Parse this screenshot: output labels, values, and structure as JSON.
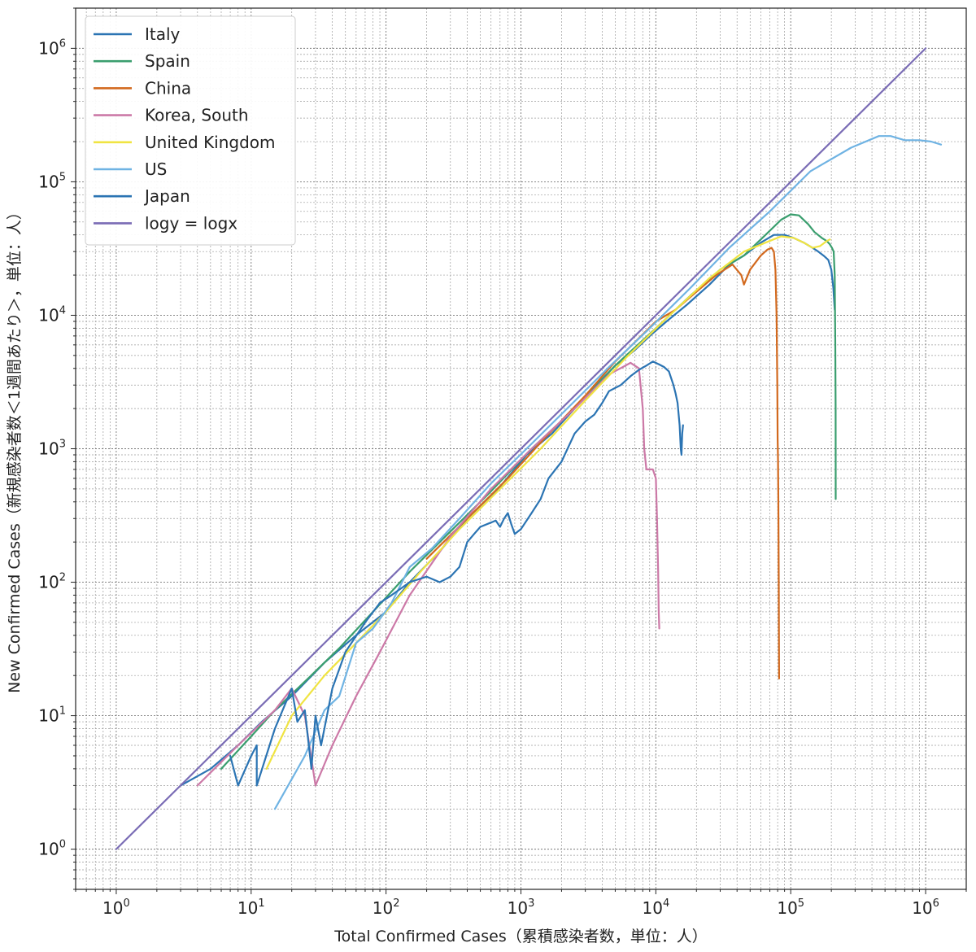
{
  "chart_data": {
    "type": "line",
    "xscale": "log",
    "yscale": "log",
    "xlim": [
      0.5,
      2000000
    ],
    "ylim": [
      0.5,
      2000000
    ],
    "xlabel": "Total Confirmed Cases（累積感染者数，単位：人）",
    "ylabel": "New Confirmed Cases（新規感染者数＜1週間あたり＞，単位：人）",
    "title": "",
    "grid": "major and minor, dotted",
    "legend_position": "top-left",
    "x_ticks": [
      {
        "value": 1,
        "base": "10",
        "exp": "0"
      },
      {
        "value": 10,
        "base": "10",
        "exp": "1"
      },
      {
        "value": 100,
        "base": "10",
        "exp": "2"
      },
      {
        "value": 1000,
        "base": "10",
        "exp": "3"
      },
      {
        "value": 10000,
        "base": "10",
        "exp": "4"
      },
      {
        "value": 100000,
        "base": "10",
        "exp": "5"
      },
      {
        "value": 1000000,
        "base": "10",
        "exp": "6"
      }
    ],
    "y_ticks": [
      {
        "value": 1,
        "base": "10",
        "exp": "0"
      },
      {
        "value": 10,
        "base": "10",
        "exp": "1"
      },
      {
        "value": 100,
        "base": "10",
        "exp": "2"
      },
      {
        "value": 1000,
        "base": "10",
        "exp": "3"
      },
      {
        "value": 10000,
        "base": "10",
        "exp": "4"
      },
      {
        "value": 100000,
        "base": "10",
        "exp": "5"
      },
      {
        "value": 1000000,
        "base": "10",
        "exp": "6"
      }
    ],
    "series": [
      {
        "name": "Italy",
        "color": "#2b74b3",
        "points": [
          [
            3,
            3
          ],
          [
            5,
            4
          ],
          [
            8,
            6
          ],
          [
            12,
            9
          ],
          [
            20,
            14
          ],
          [
            35,
            25
          ],
          [
            60,
            40
          ],
          [
            100,
            60
          ],
          [
            150,
            100
          ],
          [
            250,
            170
          ],
          [
            400,
            300
          ],
          [
            700,
            520
          ],
          [
            1100,
            900
          ],
          [
            1700,
            1300
          ],
          [
            2500,
            2000
          ],
          [
            3500,
            2900
          ],
          [
            5000,
            4200
          ],
          [
            7000,
            5500
          ],
          [
            9000,
            7000
          ],
          [
            12000,
            9000
          ],
          [
            17000,
            12000
          ],
          [
            25000,
            17000
          ],
          [
            35000,
            24000
          ],
          [
            45000,
            28000
          ],
          [
            60000,
            35000
          ],
          [
            75000,
            40000
          ],
          [
            90000,
            40000
          ],
          [
            105000,
            38000
          ],
          [
            125000,
            35000
          ],
          [
            145000,
            32000
          ],
          [
            160000,
            30000
          ],
          [
            175000,
            28000
          ],
          [
            190000,
            26000
          ],
          [
            200000,
            22000
          ],
          [
            207000,
            16000
          ],
          [
            212000,
            11000
          ]
        ]
      },
      {
        "name": "Spain",
        "color": "#3a9e6e",
        "points": [
          [
            6,
            4
          ],
          [
            10,
            7
          ],
          [
            15,
            11
          ],
          [
            25,
            18
          ],
          [
            45,
            32
          ],
          [
            80,
            60
          ],
          [
            150,
            120
          ],
          [
            300,
            240
          ],
          [
            600,
            480
          ],
          [
            1200,
            1000
          ],
          [
            2500,
            2000
          ],
          [
            5000,
            4200
          ],
          [
            10000,
            8000
          ],
          [
            18000,
            14000
          ],
          [
            30000,
            22000
          ],
          [
            45000,
            28000
          ],
          [
            65000,
            40000
          ],
          [
            85000,
            52000
          ],
          [
            100000,
            57000
          ],
          [
            115000,
            56000
          ],
          [
            135000,
            48000
          ],
          [
            150000,
            42000
          ],
          [
            170000,
            38000
          ],
          [
            185000,
            36000
          ],
          [
            195000,
            34000
          ],
          [
            202000,
            32000
          ],
          [
            208000,
            30000
          ],
          [
            212000,
            20000
          ],
          [
            214000,
            6000
          ],
          [
            215000,
            2000
          ],
          [
            215500,
            420
          ]
        ]
      },
      {
        "name": "China",
        "color": "#d2691e",
        "points": [
          [
            200,
            150
          ],
          [
            400,
            300
          ],
          [
            800,
            600
          ],
          [
            1500,
            1200
          ],
          [
            3000,
            2500
          ],
          [
            5000,
            4500
          ],
          [
            7000,
            6300
          ],
          [
            10000,
            9000
          ],
          [
            14000,
            11000
          ],
          [
            20000,
            15000
          ],
          [
            28000,
            20000
          ],
          [
            37000,
            24000
          ],
          [
            43000,
            20000
          ],
          [
            45000,
            17000
          ],
          [
            50000,
            22000
          ],
          [
            60000,
            28000
          ],
          [
            67000,
            31000
          ],
          [
            72000,
            32000
          ],
          [
            75000,
            30000
          ],
          [
            77000,
            22000
          ],
          [
            78500,
            10000
          ],
          [
            79500,
            3000
          ],
          [
            80000,
            1200
          ],
          [
            80500,
            800
          ],
          [
            81000,
            400
          ],
          [
            81300,
            170
          ],
          [
            81500,
            100
          ],
          [
            81800,
            40
          ],
          [
            82000,
            19
          ]
        ]
      },
      {
        "name": "Korea, South",
        "color": "#cc79a7",
        "points": [
          [
            4,
            3
          ],
          [
            8,
            6
          ],
          [
            15,
            11
          ],
          [
            20,
            16
          ],
          [
            25,
            10
          ],
          [
            30,
            3
          ],
          [
            40,
            6
          ],
          [
            60,
            14
          ],
          [
            90,
            30
          ],
          [
            150,
            80
          ],
          [
            300,
            220
          ],
          [
            600,
            500
          ],
          [
            1200,
            1000
          ],
          [
            2500,
            2000
          ],
          [
            4500,
            3600
          ],
          [
            6500,
            4400
          ],
          [
            7500,
            4000
          ],
          [
            8000,
            2000
          ],
          [
            8200,
            1000
          ],
          [
            8500,
            700
          ],
          [
            9000,
            700
          ],
          [
            9500,
            700
          ],
          [
            10000,
            600
          ],
          [
            10200,
            300
          ],
          [
            10400,
            120
          ],
          [
            10500,
            60
          ],
          [
            10600,
            45
          ]
        ]
      },
      {
        "name": "United Kingdom",
        "color": "#f0e442",
        "points": [
          [
            13,
            4
          ],
          [
            20,
            10
          ],
          [
            35,
            20
          ],
          [
            60,
            35
          ],
          [
            100,
            60
          ],
          [
            180,
            120
          ],
          [
            350,
            250
          ],
          [
            700,
            500
          ],
          [
            1400,
            1000
          ],
          [
            3000,
            2300
          ],
          [
            6000,
            4800
          ],
          [
            12000,
            9500
          ],
          [
            25000,
            19000
          ],
          [
            45000,
            30000
          ],
          [
            65000,
            35000
          ],
          [
            85000,
            39000
          ],
          [
            105000,
            38000
          ],
          [
            125000,
            35000
          ],
          [
            145000,
            32000
          ],
          [
            165000,
            33000
          ],
          [
            185000,
            36000
          ],
          [
            195000,
            37000
          ]
        ]
      },
      {
        "name": "US",
        "color": "#6fb3e3",
        "points": [
          [
            15,
            2
          ],
          [
            25,
            5
          ],
          [
            35,
            11
          ],
          [
            45,
            14
          ],
          [
            60,
            35
          ],
          [
            80,
            45
          ],
          [
            110,
            70
          ],
          [
            150,
            130
          ],
          [
            220,
            180
          ],
          [
            350,
            300
          ],
          [
            600,
            550
          ],
          [
            1100,
            1000
          ],
          [
            2200,
            2000
          ],
          [
            4500,
            4100
          ],
          [
            9000,
            8000
          ],
          [
            18000,
            16000
          ],
          [
            35000,
            32000
          ],
          [
            70000,
            60000
          ],
          [
            140000,
            120000
          ],
          [
            280000,
            180000
          ],
          [
            450000,
            220000
          ],
          [
            550000,
            220000
          ],
          [
            700000,
            205000
          ],
          [
            900000,
            205000
          ],
          [
            1100000,
            200000
          ],
          [
            1300000,
            190000
          ]
        ]
      },
      {
        "name": "Japan",
        "color": "#2b74b3",
        "points": [
          [
            7,
            5
          ],
          [
            8,
            3
          ],
          [
            10,
            5
          ],
          [
            11,
            6
          ],
          [
            11,
            3
          ],
          [
            15,
            8
          ],
          [
            20,
            16
          ],
          [
            22,
            9
          ],
          [
            25,
            11
          ],
          [
            28,
            4
          ],
          [
            30,
            10
          ],
          [
            33,
            6
          ],
          [
            40,
            16
          ],
          [
            50,
            30
          ],
          [
            70,
            50
          ],
          [
            90,
            70
          ],
          [
            110,
            80
          ],
          [
            150,
            100
          ],
          [
            200,
            110
          ],
          [
            250,
            100
          ],
          [
            300,
            110
          ],
          [
            350,
            130
          ],
          [
            400,
            200
          ],
          [
            450,
            230
          ],
          [
            500,
            260
          ],
          [
            600,
            280
          ],
          [
            650,
            290
          ],
          [
            700,
            260
          ],
          [
            750,
            300
          ],
          [
            800,
            330
          ],
          [
            850,
            270
          ],
          [
            900,
            230
          ],
          [
            1000,
            250
          ],
          [
            1200,
            330
          ],
          [
            1400,
            420
          ],
          [
            1600,
            600
          ],
          [
            2000,
            800
          ],
          [
            2500,
            1300
          ],
          [
            3000,
            1600
          ],
          [
            3500,
            1800
          ],
          [
            4000,
            2200
          ],
          [
            4500,
            2700
          ],
          [
            5500,
            3000
          ],
          [
            6500,
            3500
          ],
          [
            7500,
            3900
          ],
          [
            8500,
            4200
          ],
          [
            9500,
            4500
          ],
          [
            10500,
            4300
          ],
          [
            11500,
            4100
          ],
          [
            12500,
            3800
          ],
          [
            13500,
            3000
          ],
          [
            14000,
            2600
          ],
          [
            14500,
            2200
          ],
          [
            15000,
            1500
          ],
          [
            15300,
            1000
          ],
          [
            15500,
            900
          ],
          [
            15700,
            1300
          ],
          [
            15900,
            1500
          ]
        ]
      },
      {
        "name": "logy = logx",
        "color": "#7a6cb5",
        "points": [
          [
            1,
            1
          ],
          [
            1000000,
            1000000
          ]
        ]
      }
    ],
    "legend": [
      {
        "label": "Italy",
        "color": "#2b74b3"
      },
      {
        "label": "Spain",
        "color": "#3a9e6e"
      },
      {
        "label": "China",
        "color": "#d2691e"
      },
      {
        "label": "Korea, South",
        "color": "#cc79a7"
      },
      {
        "label": "United Kingdom",
        "color": "#f0e442"
      },
      {
        "label": "US",
        "color": "#6fb3e3"
      },
      {
        "label": "Japan",
        "color": "#2b74b3"
      },
      {
        "label": "logy = logx",
        "color": "#7a6cb5"
      }
    ]
  }
}
